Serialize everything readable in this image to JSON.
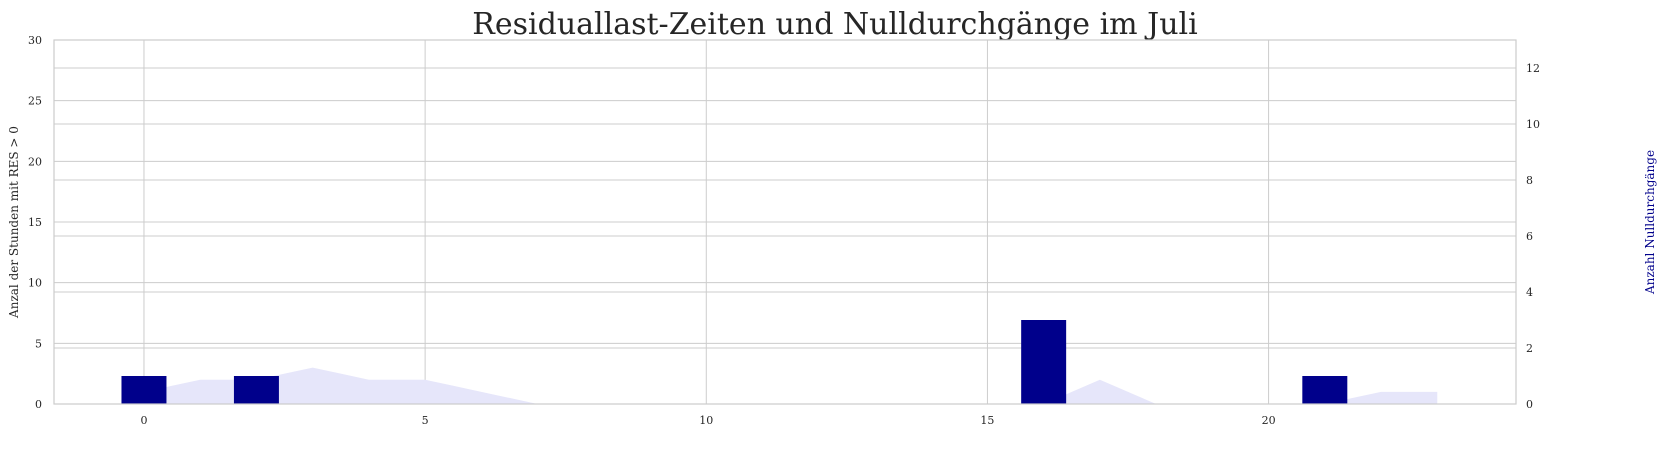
{
  "chart_data": {
    "type": "bar",
    "title": "Residuallast-Zeiten und Nulldurchgänge im Juli",
    "xlabel": "",
    "ylabel": "Anzal der Stunden mit RES > 0",
    "y2label": "Anzahl Nulldurchgänge",
    "xlim": [
      -1.6,
      24.4
    ],
    "xticks": [
      0,
      5,
      10,
      15,
      20
    ],
    "ylim": [
      0,
      30
    ],
    "yticks": [
      0,
      5,
      10,
      15,
      20,
      25,
      30
    ],
    "y2lim": [
      0,
      13
    ],
    "y2ticks": [
      0,
      2,
      4,
      6,
      8,
      10,
      12
    ],
    "grid": true,
    "series": [
      {
        "axis": "left",
        "kind": "area",
        "color": "#e6e6fa",
        "x": [
          0,
          0.5,
          1,
          1.5,
          2,
          2.5,
          3,
          3.5,
          4,
          4.5,
          5,
          5.5,
          6,
          6.5,
          7,
          7.5,
          8,
          8.5,
          9,
          9.5,
          10,
          10.5,
          11,
          11.5,
          12,
          12.5,
          13,
          13.5,
          14,
          14.5,
          15,
          15.5,
          16,
          16.5,
          17,
          17.5,
          18,
          18.5,
          19,
          19.5,
          20,
          20.5,
          21,
          21.5,
          22,
          22.5,
          23
        ],
        "values": [
          1,
          1.5,
          2,
          2,
          2,
          2.5,
          3,
          2.5,
          2,
          2,
          2,
          1.5,
          1,
          0.5,
          0,
          0,
          0,
          0,
          0,
          0,
          0,
          0,
          0,
          0,
          0,
          0,
          0,
          0,
          0,
          0,
          0,
          0,
          0,
          1,
          2,
          1,
          0,
          0,
          0,
          0,
          0,
          0,
          0,
          0.5,
          1,
          1,
          1
        ]
      },
      {
        "axis": "right",
        "kind": "bar",
        "color": "#00008b",
        "x": [
          0,
          2,
          16,
          21
        ],
        "values": [
          1,
          1,
          3,
          1
        ]
      }
    ]
  }
}
